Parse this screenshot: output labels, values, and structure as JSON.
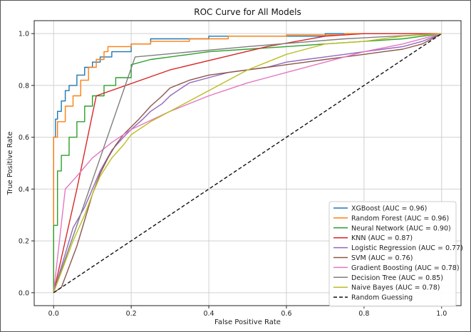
{
  "chart_data": {
    "type": "line",
    "title": "ROC Curve for All Models",
    "xlabel": "False Positive Rate",
    "ylabel": "True Positive Rate",
    "xlim": [
      -0.05,
      1.05
    ],
    "ylim": [
      -0.05,
      1.05
    ],
    "xticks": [
      0.0,
      0.2,
      0.4,
      0.6,
      0.8,
      1.0
    ],
    "yticks": [
      0.0,
      0.2,
      0.4,
      0.6,
      0.8,
      1.0
    ],
    "xtick_labels": [
      "0.0",
      "0.2",
      "0.4",
      "0.6",
      "0.8",
      "1.0"
    ],
    "ytick_labels": [
      "0.0",
      "0.2",
      "0.4",
      "0.6",
      "0.8",
      "1.0"
    ],
    "grid": true,
    "legend_position": "lower-right",
    "series": [
      {
        "name": "XGBoost (AUC = 0.96)",
        "color": "#1f77b4",
        "dashed": false,
        "x": [
          0,
          0,
          0.005,
          0.005,
          0.01,
          0.01,
          0.02,
          0.02,
          0.03,
          0.03,
          0.04,
          0.04,
          0.06,
          0.06,
          0.08,
          0.08,
          0.1,
          0.1,
          0.12,
          0.12,
          0.15,
          0.15,
          0.2,
          0.2,
          0.25,
          0.25,
          0.4,
          0.4,
          0.7,
          0.7,
          1.0
        ],
        "y": [
          0,
          0.6,
          0.6,
          0.67,
          0.67,
          0.7,
          0.7,
          0.74,
          0.74,
          0.78,
          0.78,
          0.8,
          0.8,
          0.84,
          0.84,
          0.87,
          0.87,
          0.89,
          0.89,
          0.91,
          0.91,
          0.93,
          0.93,
          0.96,
          0.96,
          0.98,
          0.98,
          0.99,
          0.99,
          1.0,
          1.0
        ]
      },
      {
        "name": "Random Forest (AUC = 0.96)",
        "color": "#ff7f0e",
        "dashed": false,
        "x": [
          0,
          0,
          0.01,
          0.01,
          0.03,
          0.03,
          0.05,
          0.05,
          0.07,
          0.07,
          0.09,
          0.09,
          0.11,
          0.11,
          0.13,
          0.13,
          0.14,
          0.14,
          0.2,
          0.2,
          0.25,
          0.25,
          0.35,
          0.35,
          0.45,
          0.45,
          0.6,
          0.6,
          0.75,
          0.75,
          1.0
        ],
        "y": [
          0,
          0.6,
          0.6,
          0.66,
          0.66,
          0.72,
          0.72,
          0.76,
          0.76,
          0.82,
          0.82,
          0.87,
          0.87,
          0.9,
          0.9,
          0.93,
          0.93,
          0.95,
          0.95,
          0.96,
          0.96,
          0.97,
          0.97,
          0.98,
          0.98,
          0.99,
          0.99,
          0.995,
          0.995,
          1.0,
          1.0
        ]
      },
      {
        "name": "Neural Network (AUC = 0.90)",
        "color": "#2ca02c",
        "dashed": false,
        "x": [
          0,
          0,
          0.01,
          0.01,
          0.02,
          0.02,
          0.04,
          0.04,
          0.06,
          0.06,
          0.08,
          0.08,
          0.1,
          0.1,
          0.13,
          0.13,
          0.16,
          0.16,
          0.2,
          0.2,
          0.25,
          0.3,
          0.35,
          0.4,
          0.5,
          0.6,
          0.7,
          0.8,
          0.9,
          0.95,
          1.0
        ],
        "y": [
          0,
          0.26,
          0.26,
          0.47,
          0.47,
          0.53,
          0.53,
          0.6,
          0.6,
          0.66,
          0.66,
          0.72,
          0.72,
          0.76,
          0.76,
          0.8,
          0.8,
          0.83,
          0.83,
          0.88,
          0.9,
          0.91,
          0.92,
          0.93,
          0.94,
          0.95,
          0.96,
          0.97,
          0.98,
          0.99,
          1.0
        ]
      },
      {
        "name": "KNN (AUC = 0.87)",
        "color": "#d62728",
        "dashed": false,
        "x": [
          0,
          0.06,
          0.11,
          0.3,
          0.55,
          0.7,
          0.8,
          1.0
        ],
        "y": [
          0,
          0.4,
          0.76,
          0.86,
          0.95,
          0.99,
          1.0,
          1.0
        ]
      },
      {
        "name": "Logistic Regression (AUC = 0.77)",
        "color": "#9467bd",
        "dashed": false,
        "x": [
          0,
          0.03,
          0.05,
          0.08,
          0.1,
          0.12,
          0.15,
          0.18,
          0.2,
          0.23,
          0.25,
          0.28,
          0.3,
          0.33,
          0.35,
          0.4,
          0.45,
          0.5,
          0.55,
          0.6,
          0.65,
          0.7,
          0.75,
          0.8,
          0.85,
          0.9,
          0.95,
          1.0
        ],
        "y": [
          0,
          0.15,
          0.25,
          0.33,
          0.4,
          0.47,
          0.55,
          0.6,
          0.63,
          0.67,
          0.7,
          0.73,
          0.76,
          0.79,
          0.81,
          0.83,
          0.85,
          0.86,
          0.87,
          0.89,
          0.9,
          0.91,
          0.92,
          0.93,
          0.94,
          0.95,
          0.97,
          1.0
        ]
      },
      {
        "name": "SVM (AUC = 0.76)",
        "color": "#8c564b",
        "dashed": false,
        "x": [
          0,
          0.02,
          0.04,
          0.06,
          0.08,
          0.1,
          0.12,
          0.14,
          0.16,
          0.18,
          0.2,
          0.22,
          0.25,
          0.28,
          0.3,
          0.35,
          0.4,
          0.45,
          0.5,
          0.55,
          0.6,
          0.65,
          0.7,
          0.75,
          0.8,
          0.85,
          0.9,
          0.95,
          1.0
        ],
        "y": [
          0,
          0.02,
          0.1,
          0.18,
          0.28,
          0.38,
          0.46,
          0.52,
          0.57,
          0.61,
          0.64,
          0.67,
          0.72,
          0.76,
          0.79,
          0.82,
          0.84,
          0.85,
          0.86,
          0.87,
          0.88,
          0.89,
          0.9,
          0.91,
          0.92,
          0.93,
          0.94,
          0.96,
          1.0
        ]
      },
      {
        "name": "Gradient Boosting (AUC = 0.78)",
        "color": "#e377c2",
        "dashed": false,
        "x": [
          0,
          0.03,
          0.06,
          0.1,
          0.15,
          0.2,
          0.3,
          0.4,
          0.5,
          0.6,
          0.7,
          0.8,
          0.9,
          1.0
        ],
        "y": [
          0,
          0.4,
          0.45,
          0.52,
          0.58,
          0.63,
          0.7,
          0.76,
          0.81,
          0.85,
          0.89,
          0.93,
          0.96,
          1.0
        ]
      },
      {
        "name": "Decision Tree (AUC = 0.85)",
        "color": "#7f7f7f",
        "dashed": false,
        "x": [
          0,
          0.21,
          0.5,
          0.75,
          1.0
        ],
        "y": [
          0,
          0.91,
          0.95,
          0.98,
          1.0
        ]
      },
      {
        "name": "Naive Bayes (AUC = 0.78)",
        "color": "#bcbd22",
        "dashed": false,
        "x": [
          0,
          0.03,
          0.05,
          0.08,
          0.1,
          0.12,
          0.15,
          0.18,
          0.2,
          0.25,
          0.3,
          0.35,
          0.4,
          0.45,
          0.5,
          0.55,
          0.6,
          0.65,
          0.7,
          0.8,
          0.9,
          1.0
        ],
        "y": [
          0,
          0.12,
          0.2,
          0.3,
          0.38,
          0.45,
          0.52,
          0.57,
          0.61,
          0.66,
          0.7,
          0.74,
          0.78,
          0.82,
          0.86,
          0.89,
          0.92,
          0.94,
          0.96,
          0.97,
          0.99,
          1.0
        ]
      },
      {
        "name": "Random Guessing",
        "color": "#111111",
        "dashed": true,
        "x": [
          0,
          1
        ],
        "y": [
          0,
          1
        ]
      }
    ]
  }
}
